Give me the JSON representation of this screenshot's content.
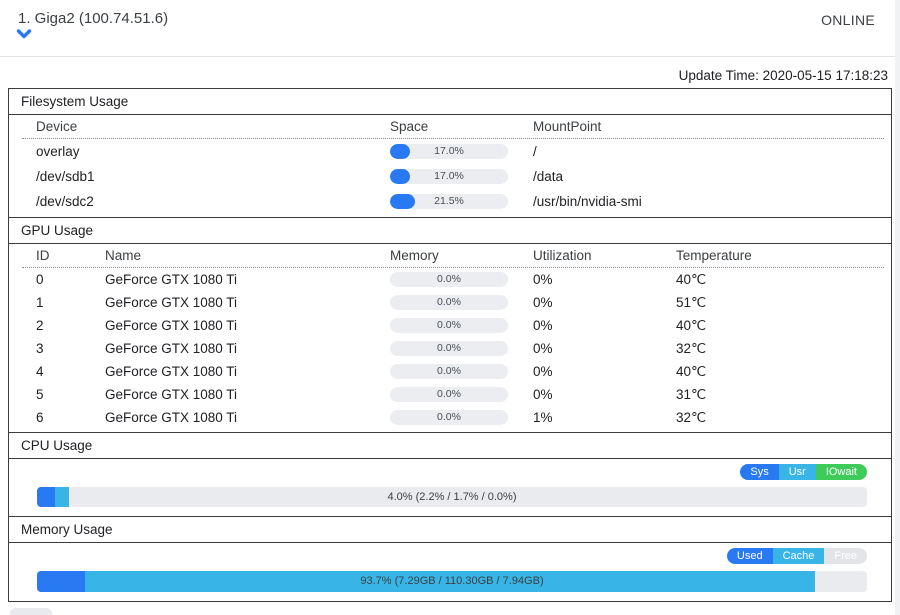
{
  "header": {
    "title": "1. Giga2 (100.74.51.6)",
    "status": "ONLINE"
  },
  "update_time": "Update Time: 2020-05-15 17:18:23",
  "colors": {
    "blue": "#2979f2",
    "cyan": "#38b5e6",
    "green": "#3ecb5a",
    "legend_free_gray": "#e2e4e7",
    "track_gray": "#ebedf0"
  },
  "filesystem": {
    "title": "Filesystem Usage",
    "columns": {
      "device": "Device",
      "space": "Space",
      "mount": "MountPoint"
    },
    "rows": [
      {
        "device": "overlay",
        "space_pct": 17.0,
        "space_label": "17.0%",
        "mount": "/"
      },
      {
        "device": "/dev/sdb1",
        "space_pct": 17.0,
        "space_label": "17.0%",
        "mount": "/data"
      },
      {
        "device": "/dev/sdc2",
        "space_pct": 21.5,
        "space_label": "21.5%",
        "mount": "/usr/bin/nvidia-smi"
      }
    ]
  },
  "gpu": {
    "title": "GPU Usage",
    "columns": {
      "id": "ID",
      "name": "Name",
      "memory": "Memory",
      "utilization": "Utilization",
      "temperature": "Temperature"
    },
    "rows": [
      {
        "id": "0",
        "name": "GeForce GTX 1080 Ti",
        "memory_pct": 0.0,
        "memory_label": "0.0%",
        "utilization": "0%",
        "temperature": "40℃"
      },
      {
        "id": "1",
        "name": "GeForce GTX 1080 Ti",
        "memory_pct": 0.0,
        "memory_label": "0.0%",
        "utilization": "0%",
        "temperature": "51℃"
      },
      {
        "id": "2",
        "name": "GeForce GTX 1080 Ti",
        "memory_pct": 0.0,
        "memory_label": "0.0%",
        "utilization": "0%",
        "temperature": "40℃"
      },
      {
        "id": "3",
        "name": "GeForce GTX 1080 Ti",
        "memory_pct": 0.0,
        "memory_label": "0.0%",
        "utilization": "0%",
        "temperature": "32℃"
      },
      {
        "id": "4",
        "name": "GeForce GTX 1080 Ti",
        "memory_pct": 0.0,
        "memory_label": "0.0%",
        "utilization": "0%",
        "temperature": "40℃"
      },
      {
        "id": "5",
        "name": "GeForce GTX 1080 Ti",
        "memory_pct": 0.0,
        "memory_label": "0.0%",
        "utilization": "0%",
        "temperature": "31℃"
      },
      {
        "id": "6",
        "name": "GeForce GTX 1080 Ti",
        "memory_pct": 0.0,
        "memory_label": "0.0%",
        "utilization": "1%",
        "temperature": "32℃"
      }
    ]
  },
  "cpu": {
    "title": "CPU Usage",
    "legend": [
      {
        "label": "Sys",
        "color": "#2979f2"
      },
      {
        "label": "Usr",
        "color": "#38b5e6"
      },
      {
        "label": "IOwait",
        "color": "#3ecb5a"
      }
    ],
    "bar": {
      "label": "4.0% (2.2% / 1.7% / 0.0%)",
      "segments": [
        {
          "name": "sys",
          "pct": 2.2,
          "color": "#2979f2"
        },
        {
          "name": "usr",
          "pct": 1.7,
          "color": "#38b5e6"
        },
        {
          "name": "iowait",
          "pct": 0.0,
          "color": "#3ecb5a"
        }
      ]
    }
  },
  "memory": {
    "title": "Memory Usage",
    "legend": [
      {
        "label": "Used",
        "color": "#2979f2"
      },
      {
        "label": "Cache",
        "color": "#38b5e6"
      },
      {
        "label": "Free",
        "color": "#e2e4e7"
      }
    ],
    "bar": {
      "label": "93.7% (7.29GB / 110.30GB / 7.94GB)",
      "segments": [
        {
          "name": "used",
          "pct": 5.8,
          "color": "#2979f2"
        },
        {
          "name": "cache",
          "pct": 87.9,
          "color": "#38b5e6"
        }
      ]
    }
  }
}
